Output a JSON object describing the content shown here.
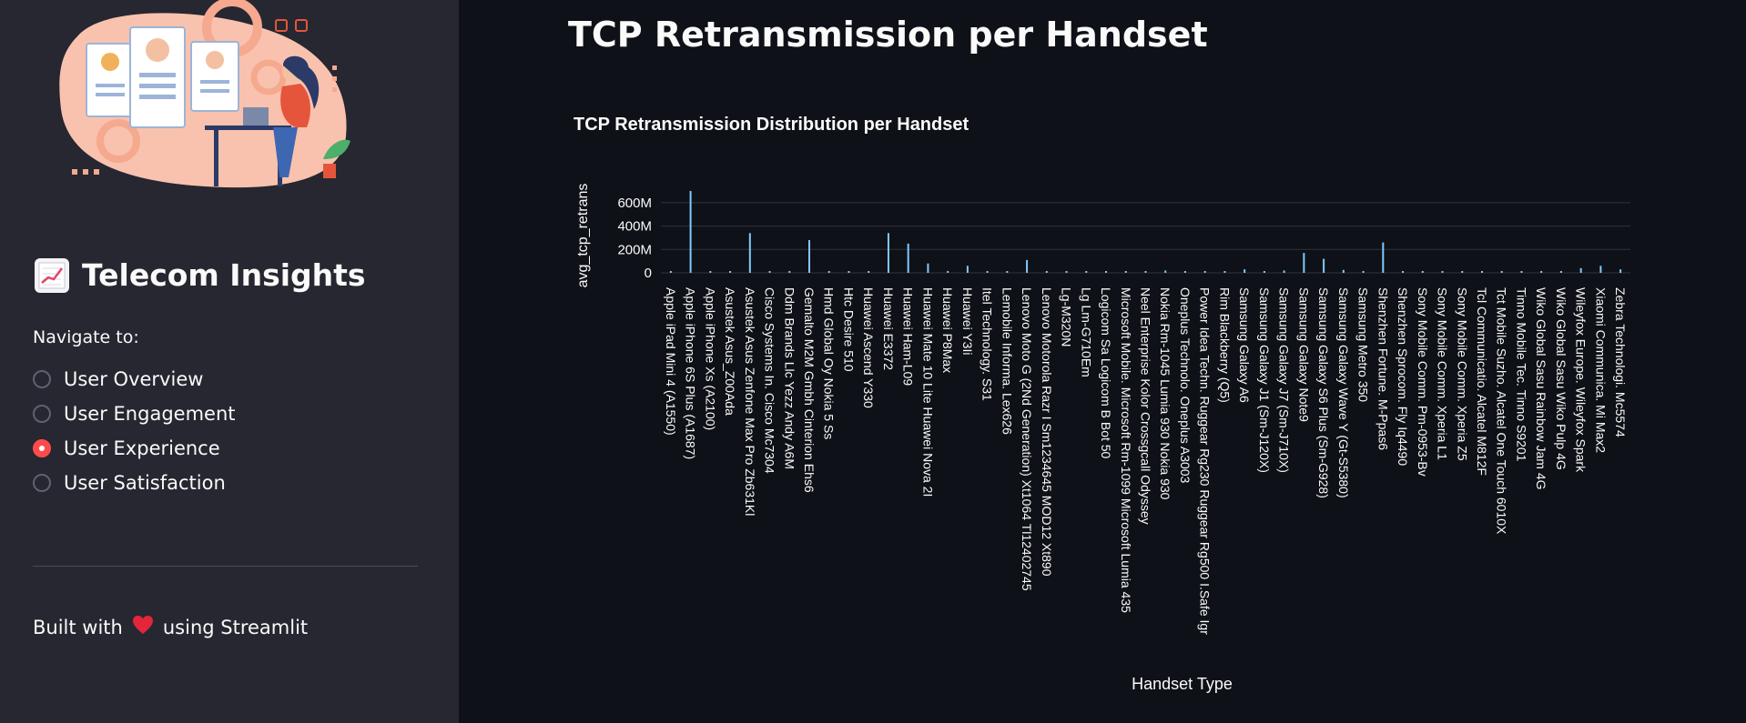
{
  "sidebar": {
    "app_title": "Telecom Insights",
    "nav_label": "Navigate to:",
    "nav_items": [
      {
        "label": "User Overview",
        "selected": false
      },
      {
        "label": "User Engagement",
        "selected": false
      },
      {
        "label": "User Experience",
        "selected": true
      },
      {
        "label": "User Satisfaction",
        "selected": false
      }
    ],
    "footer_prefix": "Built with",
    "footer_suffix": "using Streamlit",
    "footer_icon": "heart-icon",
    "brand_icon": "chart-increasing-icon"
  },
  "main": {
    "page_title": "TCP Retransmission per Handset"
  },
  "colors": {
    "accent": "#ff4b4b",
    "bar": "#83c9ff",
    "background": "#0e1117",
    "sidebar": "#262730"
  },
  "chart_data": {
    "type": "bar",
    "title": "TCP Retransmission Distribution per Handset",
    "xlabel": "Handset Type",
    "ylabel": "avg_tcp_retrans",
    "ylim": [
      0,
      700000000
    ],
    "y_ticks": [
      "0",
      "200M",
      "400M",
      "600M"
    ],
    "y_tick_values": [
      0,
      200000000,
      400000000,
      600000000
    ],
    "grid": true,
    "categories": [
      "Apple iPad Mini 4 (A1550)",
      "Apple iPhone 6S Plus (A1687)",
      "Apple iPhone Xs (A2100)",
      "Asustek Asus_Z00Ada",
      "Asustek Asus Zenfone Max Pro Zb631Kl",
      "Cisco Systems In. Cisco Mc7304",
      "Ddm Brands Llc Yezz Andy A6M",
      "Gemalto M2M Gmbh Cinterion Ehs6",
      "Hmd Global Oy Nokia 5 Ss",
      "Htc Desire 510",
      "Huawei Ascend Y330",
      "Huawei E3372",
      "Huawei Ham-L09",
      "Huawei Mate 10 Lite Huawei Nova 2I",
      "Huawei P8Max",
      "Huawei Y3Ii",
      "Itel Technology. S31",
      "Lemobile Informa. Lex626",
      "Lenovo Moto G (2Nd Generation) Xt1064 Tl12402745",
      "Lenovo Motorola Razr I Sm1234645 MOD12 Xt890",
      "Lg-M320N",
      "Lg Lm-G710Em",
      "Logicom Sa Logicom B Bot 50",
      "Microsoft Mobile. Microsoft Rm-1099 Microsoft Lumia 435",
      "Neel Enterprise Kolor Crossgcall Odyssey",
      "Nokia Rm-1045 Lumia 930 Nokia 930",
      "Oneplus Technolo. Oneplus A3003",
      "Power Idea Techn. Ruggear Rg230 Ruggear Rg500 I.Safe Igr",
      "Rim Blackberry (Q5)",
      "Samsung Galaxy A6",
      "Samsung Galaxy J1 (Sm-J120X)",
      "Samsung Galaxy J7 (Sm-J710X)",
      "Samsung Galaxy Note9",
      "Samsung Galaxy S6 Plus (Sm-G928)",
      "Samsung Galaxy Wave Y (Gt-S5380)",
      "Samsung Metro 350",
      "Shenzhen Fortune. M-Ppas6",
      "Shenzhen Sprocom. Fly Iq4490",
      "Sony Mobile Comm. Pm-0953-Bv",
      "Sony Mobile Comm. Xperia L1",
      "Sony Mobile Comm. Xperia Z5",
      "Tcl Communicatio. Alcatel M812F",
      "Tct Mobile Suzho. Alcatel One Touch 6010X",
      "Tinno Mobile Tec. Tinno S9201",
      "Wiko Global Sasu Rainbow Jam 4G",
      "Wiko Global Sasu Wiko Pulp 4G",
      "Wileyfox Europe. Wileyfox Spark",
      "Xiaomi Communica. Mi Max2",
      "Zebra Technologi. Mc5574"
    ],
    "values": [
      12000000,
      700000000,
      8000000,
      15000000,
      340000000,
      10000000,
      6000000,
      280000000,
      9000000,
      12000000,
      7000000,
      340000000,
      250000000,
      80000000,
      14000000,
      60000000,
      9000000,
      11000000,
      110000000,
      15000000,
      8000000,
      12000000,
      10000000,
      9000000,
      13000000,
      20000000,
      11000000,
      8000000,
      10000000,
      30000000,
      15000000,
      20000000,
      170000000,
      120000000,
      25000000,
      14000000,
      260000000,
      12000000,
      9000000,
      11000000,
      15000000,
      10000000,
      12000000,
      8000000,
      14000000,
      10000000,
      40000000,
      60000000,
      30000000
    ]
  }
}
